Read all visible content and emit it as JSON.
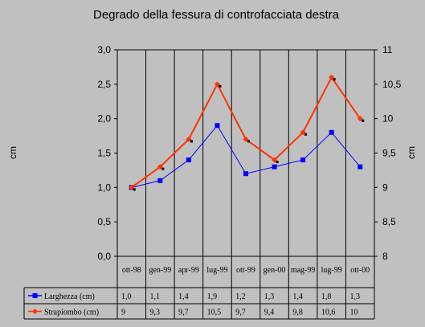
{
  "chart_data": {
    "type": "line",
    "title": "Degrado della fessura di controfacciata destra",
    "categories": [
      "ott-98",
      "gen-99",
      "apr-99",
      "lug-99",
      "ott-99",
      "gen-00",
      "mag-99",
      "lug-99",
      "ott-00"
    ],
    "y_left": {
      "label": "cm",
      "ylim": [
        0,
        3
      ],
      "ticks": [
        "0,0",
        "0,5",
        "1,0",
        "1,5",
        "2,0",
        "2,5",
        "3,0"
      ]
    },
    "y_right": {
      "label": "cm",
      "ylim": [
        8,
        11
      ],
      "ticks": [
        "8",
        "8,5",
        "9",
        "9,5",
        "10",
        "10,5",
        "11"
      ]
    },
    "grid": "vertical",
    "legend": "data-table",
    "series": [
      {
        "name": "Larghezza (cm)",
        "axis": "left",
        "color": "#0000ff",
        "marker": "square",
        "values": [
          1.0,
          1.1,
          1.4,
          1.9,
          1.2,
          1.3,
          1.4,
          1.8,
          1.3
        ],
        "labels": [
          "1,0",
          "1,1",
          "1,4",
          "1,9",
          "1,2",
          "1,3",
          "1,4",
          "1,8",
          "1,3"
        ]
      },
      {
        "name": "Strapiombo (cm)",
        "axis": "right",
        "color": "#ff3300",
        "marker": "diamond",
        "values": [
          9.0,
          9.3,
          9.7,
          10.5,
          9.7,
          9.4,
          9.8,
          10.6,
          10.0
        ],
        "labels": [
          "9",
          "9,3",
          "9,7",
          "10,5",
          "9,7",
          "9,4",
          "9,8",
          "10,6",
          "10"
        ]
      }
    ]
  }
}
